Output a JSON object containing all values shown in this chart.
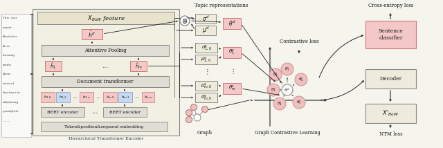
{
  "figsize": [
    6.4,
    2.14
  ],
  "dpi": 100,
  "bg_color": "#f5f5ee",
  "colors": {
    "pink_fill": "#f5c8c8",
    "blue_fill": "#c8d8ee",
    "beige_fill": "#eeeadc",
    "gray_fill": "#e0ddd5",
    "white": "#ffffff",
    "graph_node": "#f0c0c0",
    "arrow": "#222222",
    "text": "#111111"
  },
  "doc_lines": [
    "This  case",
    "report",
    "illustrates",
    "three",
    "learning",
    "points",
    "about",
    "cervical",
    "fractures in",
    "ankylosing",
    "spondylitis.",
    "........."
  ]
}
